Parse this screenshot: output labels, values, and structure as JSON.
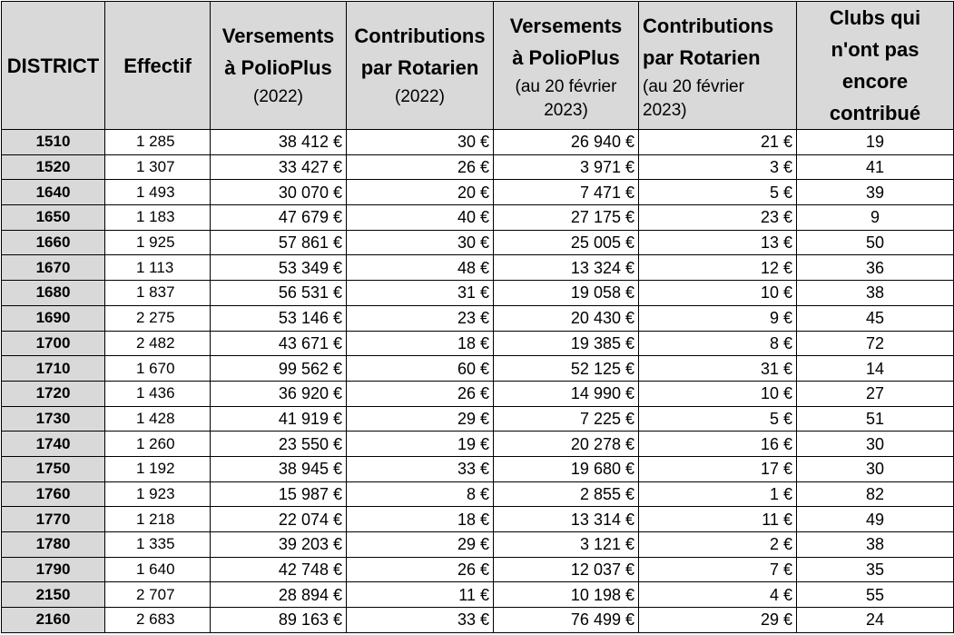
{
  "headers": {
    "district": "DISTRICT",
    "effectif": "Effectif",
    "versements_2022": {
      "line1": "Versements",
      "line2": "à PolioPlus",
      "sub": "(2022)"
    },
    "contrib_2022": {
      "line1": "Contributions",
      "line2": "par Rotarien",
      "sub": "(2022)"
    },
    "versements_2023": {
      "line1": "Versements",
      "line2": "à PolioPlus",
      "sub1": "(au 20 février",
      "sub2": "2023)"
    },
    "contrib_2023": {
      "line1": "Contributions",
      "line2": "par Rotarien",
      "sub1": "(au 20 février",
      "sub2": "2023)"
    },
    "clubs": {
      "line1": "Clubs qui",
      "line2": "n'ont  pas",
      "line3": "encore",
      "line4": "contribué"
    }
  },
  "rows": [
    {
      "district": "1510",
      "effectif": "1 285",
      "vers_2022": "38 412 €",
      "contrib_2022": "30 €",
      "vers_2023": "26 940 €",
      "contrib_2023": "21 €",
      "clubs": "19"
    },
    {
      "district": "1520",
      "effectif": "1 307",
      "vers_2022": "33 427 €",
      "contrib_2022": "26 €",
      "vers_2023": "3 971 €",
      "contrib_2023": "3 €",
      "clubs": "41"
    },
    {
      "district": "1640",
      "effectif": "1 493",
      "vers_2022": "30 070 €",
      "contrib_2022": "20 €",
      "vers_2023": "7 471 €",
      "contrib_2023": "5 €",
      "clubs": "39"
    },
    {
      "district": "1650",
      "effectif": "1 183",
      "vers_2022": "47 679 €",
      "contrib_2022": "40 €",
      "vers_2023": "27 175 €",
      "contrib_2023": "23 €",
      "clubs": "9"
    },
    {
      "district": "1660",
      "effectif": "1 925",
      "vers_2022": "57 861 €",
      "contrib_2022": "30 €",
      "vers_2023": "25 005 €",
      "contrib_2023": "13 €",
      "clubs": "50"
    },
    {
      "district": "1670",
      "effectif": "1 113",
      "vers_2022": "53 349 €",
      "contrib_2022": "48 €",
      "vers_2023": "13 324 €",
      "contrib_2023": "12 €",
      "clubs": "36"
    },
    {
      "district": "1680",
      "effectif": "1 837",
      "vers_2022": "56 531 €",
      "contrib_2022": "31 €",
      "vers_2023": "19 058 €",
      "contrib_2023": "10 €",
      "clubs": "38"
    },
    {
      "district": "1690",
      "effectif": "2 275",
      "vers_2022": "53 146 €",
      "contrib_2022": "23 €",
      "vers_2023": "20 430 €",
      "contrib_2023": "9 €",
      "clubs": "45"
    },
    {
      "district": "1700",
      "effectif": "2 482",
      "vers_2022": "43 671 €",
      "contrib_2022": "18 €",
      "vers_2023": "19 385 €",
      "contrib_2023": "8 €",
      "clubs": "72"
    },
    {
      "district": "1710",
      "effectif": "1 670",
      "vers_2022": "99 562 €",
      "contrib_2022": "60 €",
      "vers_2023": "52 125 €",
      "contrib_2023": "31 €",
      "clubs": "14"
    },
    {
      "district": "1720",
      "effectif": "1 436",
      "vers_2022": "36 920 €",
      "contrib_2022": "26 €",
      "vers_2023": "14 990 €",
      "contrib_2023": "10 €",
      "clubs": "27"
    },
    {
      "district": "1730",
      "effectif": "1 428",
      "vers_2022": "41 919 €",
      "contrib_2022": "29 €",
      "vers_2023": "7 225 €",
      "contrib_2023": "5 €",
      "clubs": "51"
    },
    {
      "district": "1740",
      "effectif": "1 260",
      "vers_2022": "23 550 €",
      "contrib_2022": "19 €",
      "vers_2023": "20 278 €",
      "contrib_2023": "16 €",
      "clubs": "30"
    },
    {
      "district": "1750",
      "effectif": "1 192",
      "vers_2022": "38 945 €",
      "contrib_2022": "33 €",
      "vers_2023": "19 680 €",
      "contrib_2023": "17 €",
      "clubs": "30"
    },
    {
      "district": "1760",
      "effectif": "1 923",
      "vers_2022": "15 987 €",
      "contrib_2022": "8 €",
      "vers_2023": "2 855 €",
      "contrib_2023": "1 €",
      "clubs": "82"
    },
    {
      "district": "1770",
      "effectif": "1 218",
      "vers_2022": "22 074 €",
      "contrib_2022": "18 €",
      "vers_2023": "13 314 €",
      "contrib_2023": "11 €",
      "clubs": "49"
    },
    {
      "district": "1780",
      "effectif": "1 335",
      "vers_2022": "39 203 €",
      "contrib_2022": "29 €",
      "vers_2023": "3 121 €",
      "contrib_2023": "2 €",
      "clubs": "38"
    },
    {
      "district": "1790",
      "effectif": "1 640",
      "vers_2022": "42 748 €",
      "contrib_2022": "26 €",
      "vers_2023": "12 037 €",
      "contrib_2023": "7 €",
      "clubs": "35"
    },
    {
      "district": "2150",
      "effectif": "2 707",
      "vers_2022": "28 894 €",
      "contrib_2022": "11 €",
      "vers_2023": "10 198 €",
      "contrib_2023": "4 €",
      "clubs": "55"
    },
    {
      "district": "2160",
      "effectif": "2 683",
      "vers_2022": "89 163 €",
      "contrib_2022": "33 €",
      "vers_2023": "76 499 €",
      "contrib_2023": "29 €",
      "clubs": "24"
    }
  ]
}
